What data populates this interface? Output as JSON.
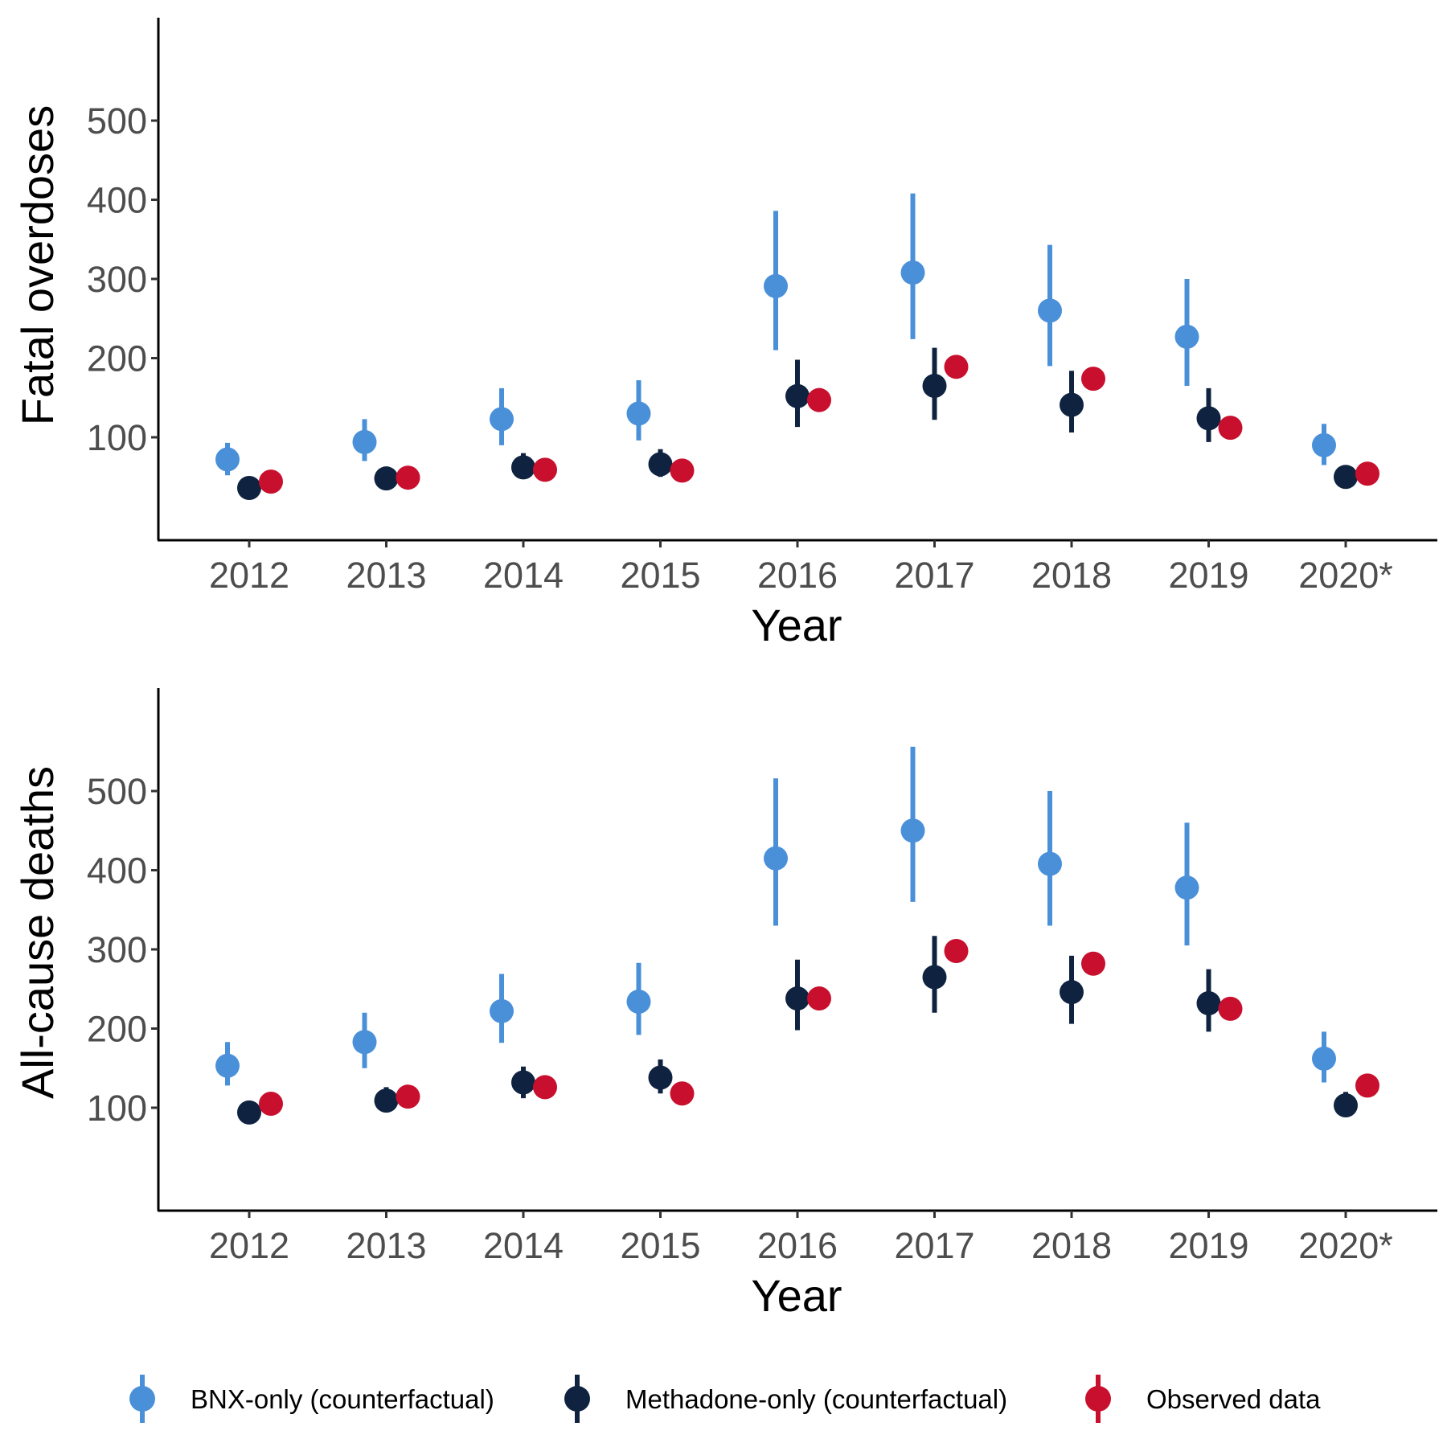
{
  "chart_data": [
    {
      "type": "scatter",
      "title": "",
      "xlabel": "Year",
      "ylabel": "Fatal overdoses",
      "categories": [
        "2012",
        "2013",
        "2014",
        "2015",
        "2016",
        "2017",
        "2018",
        "2019",
        "2020*"
      ],
      "yticks": [
        100,
        200,
        300,
        400,
        500
      ],
      "ylim": [
        -30,
        630
      ],
      "grid": false,
      "series": [
        {
          "name": "BNX-only (counterfactual)",
          "color": "#4a90d9",
          "values": [
            72,
            94,
            123,
            130,
            291,
            308,
            260,
            227,
            90
          ],
          "lower": [
            52,
            70,
            90,
            96,
            210,
            224,
            190,
            165,
            65
          ],
          "upper": [
            93,
            123,
            162,
            172,
            386,
            408,
            343,
            300,
            117
          ]
        },
        {
          "name": "Methadone-only (counterfactual)",
          "color": "#0f2340",
          "values": [
            36,
            48,
            62,
            66,
            152,
            165,
            141,
            124,
            50
          ],
          "lower": [
            32,
            40,
            50,
            50,
            113,
            122,
            106,
            94,
            43
          ],
          "upper": [
            40,
            55,
            80,
            85,
            198,
            213,
            184,
            162,
            57
          ]
        },
        {
          "name": "Observed data",
          "color": "#c8102e",
          "values": [
            44,
            49,
            59,
            58,
            147,
            189,
            174,
            112,
            54
          ]
        }
      ]
    },
    {
      "type": "scatter",
      "title": "",
      "xlabel": "Year",
      "ylabel": "All-cause deaths",
      "categories": [
        "2012",
        "2013",
        "2014",
        "2015",
        "2016",
        "2017",
        "2018",
        "2019",
        "2020*"
      ],
      "yticks": [
        100,
        200,
        300,
        400,
        500
      ],
      "ylim": [
        -30,
        630
      ],
      "grid": false,
      "series": [
        {
          "name": "BNX-only (counterfactual)",
          "color": "#4a90d9",
          "values": [
            153,
            183,
            222,
            234,
            415,
            450,
            408,
            378,
            162
          ],
          "lower": [
            128,
            150,
            182,
            192,
            330,
            360,
            330,
            305,
            132
          ],
          "upper": [
            183,
            220,
            269,
            283,
            516,
            556,
            500,
            460,
            196
          ]
        },
        {
          "name": "Methadone-only (counterfactual)",
          "color": "#0f2340",
          "values": [
            94,
            109,
            132,
            138,
            238,
            265,
            246,
            232,
            103
          ],
          "lower": [
            85,
            95,
            112,
            118,
            198,
            220,
            206,
            196,
            90
          ],
          "upper": [
            102,
            126,
            152,
            161,
            287,
            317,
            292,
            275,
            120
          ]
        },
        {
          "name": "Observed data",
          "color": "#c8102e",
          "values": [
            105,
            114,
            126,
            118,
            238,
            298,
            282,
            225,
            128
          ]
        }
      ]
    }
  ],
  "legend": {
    "position": "bottom",
    "items": [
      {
        "label": "BNX-only (counterfactual)",
        "color": "#4a90d9"
      },
      {
        "label": "Methadone-only (counterfactual)",
        "color": "#0f2340"
      },
      {
        "label": "Observed data",
        "color": "#c8102e"
      }
    ]
  }
}
